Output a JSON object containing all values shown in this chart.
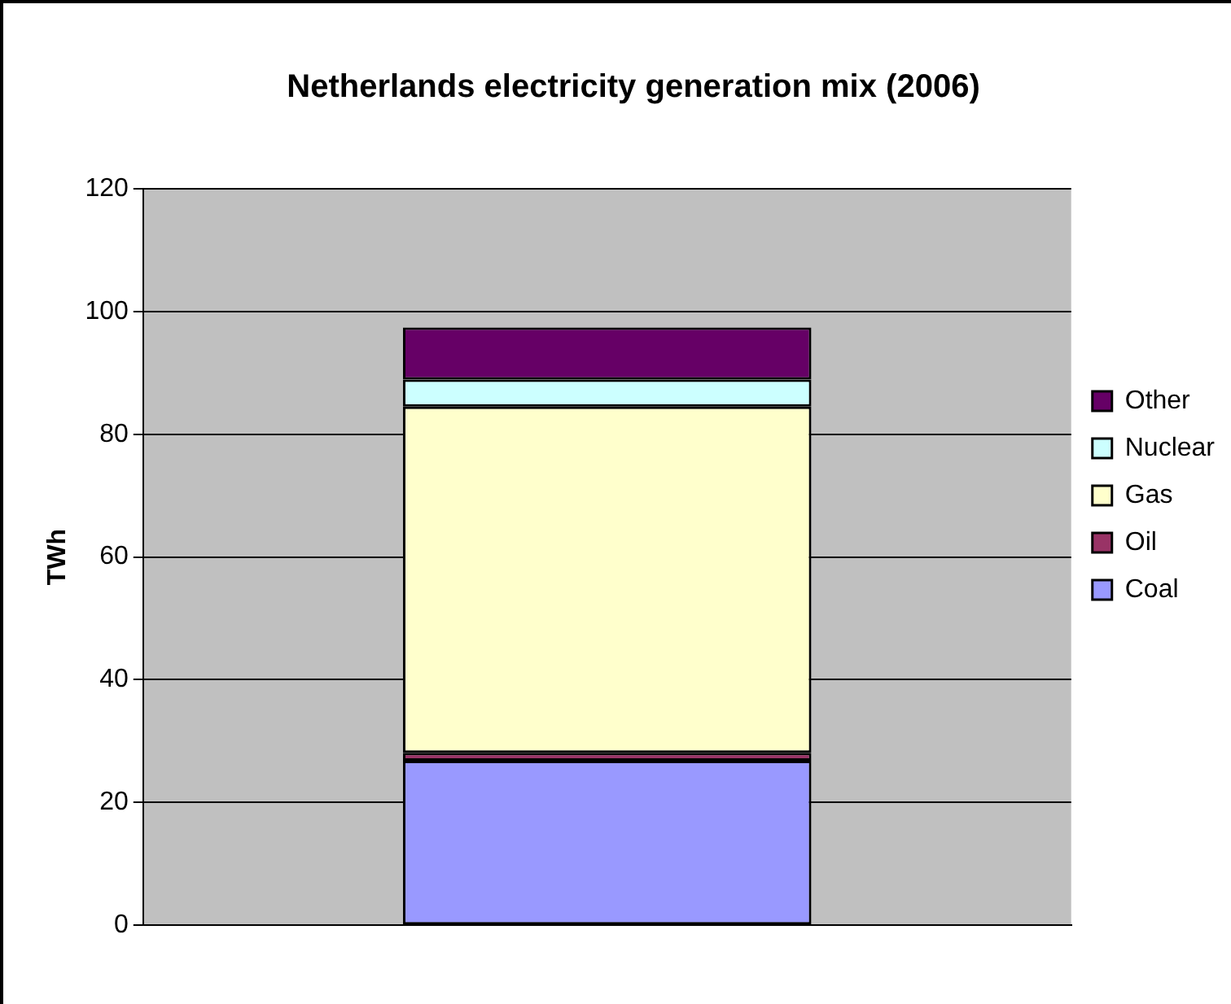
{
  "chart_data": {
    "type": "bar",
    "title": "Netherlands electricity generation mix (2006)",
    "ylabel": "TWh",
    "categories": [
      null
    ],
    "stacked": true,
    "series": [
      {
        "name": "Coal",
        "color": "#9999ff",
        "values": [
          26.8
        ]
      },
      {
        "name": "Oil",
        "color": "#993366",
        "values": [
          1.3
        ]
      },
      {
        "name": "Gas",
        "color": "#ffffcc",
        "values": [
          56.4
        ]
      },
      {
        "name": "Nuclear",
        "color": "#ccffff",
        "values": [
          4.4
        ]
      },
      {
        "name": "Other",
        "color": "#660066",
        "values": [
          8.5
        ]
      }
    ],
    "ylim": [
      0,
      120
    ],
    "yticks": [
      0,
      20,
      40,
      60,
      80,
      100,
      120
    ],
    "grid": "y",
    "legend": "right"
  }
}
